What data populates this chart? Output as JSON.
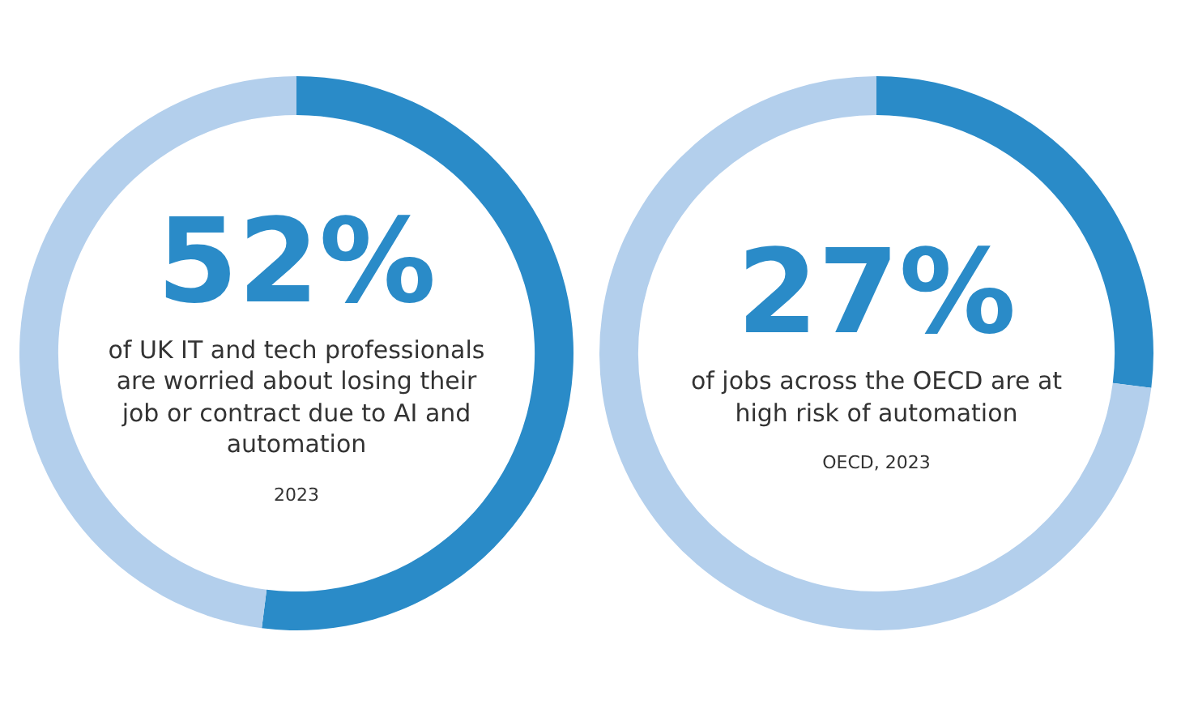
{
  "chart_data": [
    {
      "type": "donut",
      "categories": [
        null,
        null
      ],
      "values": [
        52,
        48
      ],
      "colors": [
        "#2a8bc8",
        "#b3cfec"
      ],
      "value_labels": [
        "52%",
        null
      ],
      "subtitle": "of UK IT and tech professionals are worried about losing their job or contract due to AI and automation",
      "annotations": [
        "2023"
      ],
      "legend": false
    },
    {
      "type": "donut",
      "categories": [
        null,
        null
      ],
      "values": [
        27,
        73
      ],
      "colors": [
        "#2a8bc8",
        "#b3cfec"
      ],
      "value_labels": [
        "27%",
        null
      ],
      "subtitle": "of jobs across the OECD are at high risk of automation",
      "annotations": [
        "OECD, 2023"
      ],
      "legend": false
    }
  ]
}
